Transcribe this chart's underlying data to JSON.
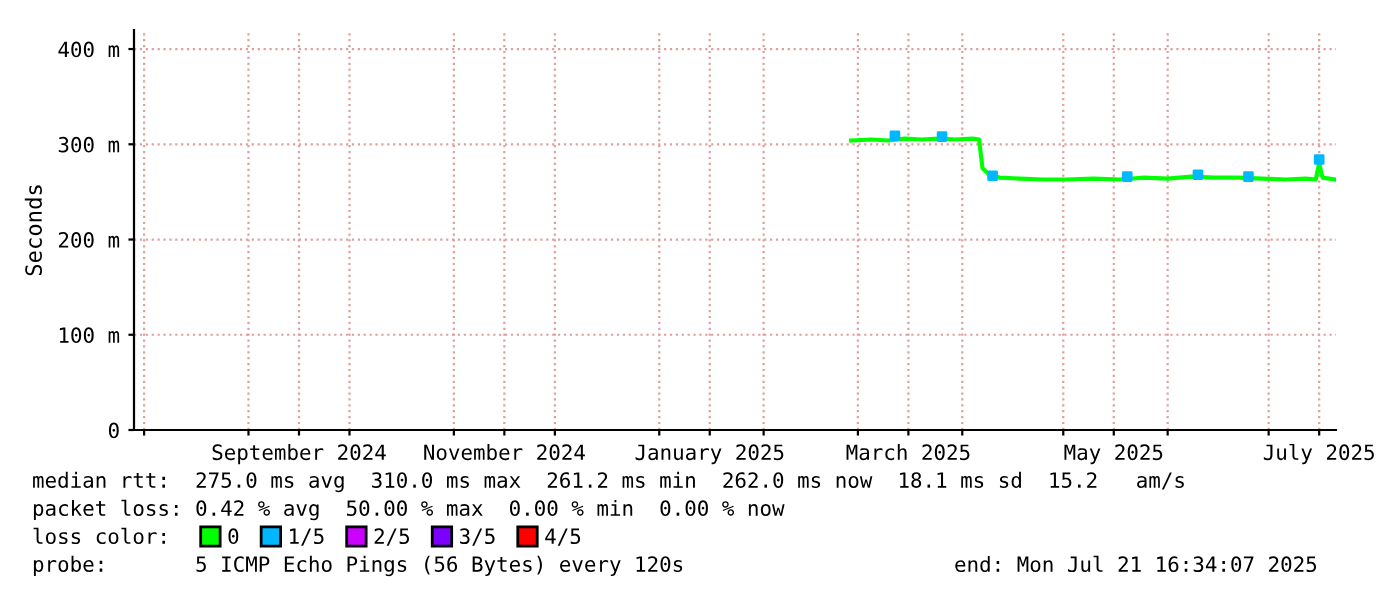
{
  "chart_data": {
    "type": "line",
    "ylabel": "Seconds",
    "xlim": [
      "2024-07-29",
      "2025-07-21"
    ],
    "xticks": [
      {
        "value": "2024-08-01",
        "label": null
      },
      {
        "value": "2024-09-01",
        "label": null
      },
      {
        "value": "2024-09-16",
        "label": "September 2024"
      },
      {
        "value": "2024-10-01",
        "label": null
      },
      {
        "value": "2024-11-01",
        "label": null
      },
      {
        "value": "2024-11-16",
        "label": "November 2024"
      },
      {
        "value": "2024-12-01",
        "label": null
      },
      {
        "value": "2025-01-01",
        "label": null
      },
      {
        "value": "2025-01-16",
        "label": "January 2025"
      },
      {
        "value": "2025-02-01",
        "label": null
      },
      {
        "value": "2025-03-01",
        "label": null
      },
      {
        "value": "2025-03-16",
        "label": "March 2025"
      },
      {
        "value": "2025-04-01",
        "label": null
      },
      {
        "value": "2025-05-01",
        "label": null
      },
      {
        "value": "2025-05-16",
        "label": "May 2025"
      },
      {
        "value": "2025-06-01",
        "label": null
      },
      {
        "value": "2025-07-01",
        "label": null
      },
      {
        "value": "2025-07-16",
        "label": "July 2025"
      }
    ],
    "ylim": [
      0,
      420
    ],
    "yticks": [
      0,
      {
        "value": 100,
        "label": "100 m"
      },
      {
        "value": 200,
        "label": "200 m"
      },
      {
        "value": 300,
        "label": "300 m"
      },
      {
        "value": 400,
        "label": "400 m"
      }
    ],
    "grid": true,
    "legend": "bottom",
    "series": [
      {
        "name": "0",
        "color": "#00ff00",
        "x": [
          "2025-02-27",
          "2025-03-05",
          "2025-03-10",
          "2025-03-15",
          "2025-03-20",
          "2025-03-25",
          "2025-03-30",
          "2025-04-04",
          "2025-04-06",
          "2025-04-07",
          "2025-04-09",
          "2025-04-12",
          "2025-04-18",
          "2025-04-25",
          "2025-05-02",
          "2025-05-10",
          "2025-05-18",
          "2025-05-25",
          "2025-06-01",
          "2025-06-08",
          "2025-06-15",
          "2025-06-22",
          "2025-06-29",
          "2025-07-06",
          "2025-07-12",
          "2025-07-15",
          "2025-07-16",
          "2025-07-17",
          "2025-07-21"
        ],
        "values": [
          304,
          305,
          304,
          306,
          305,
          306,
          305,
          306,
          305,
          275,
          268,
          265,
          264,
          263,
          263,
          264,
          263,
          265,
          264,
          266,
          265,
          265,
          264,
          263,
          264,
          263,
          280,
          265,
          263
        ]
      },
      {
        "name": "1/5",
        "color": "#00b8ff",
        "type": "scatter",
        "marker": "square",
        "x": [
          "2025-03-12",
          "2025-03-26",
          "2025-04-10",
          "2025-05-20",
          "2025-06-10",
          "2025-06-25",
          "2025-07-16"
        ],
        "values": [
          309,
          308,
          267,
          266,
          268,
          266,
          284
        ]
      },
      {
        "name": "2/5",
        "color": "#cc00ff",
        "type": "scatter"
      },
      {
        "name": "3/5",
        "color": "#7c00ff",
        "type": "scatter"
      },
      {
        "name": "4/5",
        "color": "#ff0000",
        "type": "scatter"
      }
    ],
    "annotations": [
      "median rtt:  275.0 ms avg  310.0 ms max  261.2 ms min  262.0 ms now  18.1 ms sd  15.2   am/s",
      "packet loss: 0.42 % avg  50.00 % max  0.00 % min  0.00 % now",
      "loss color:",
      "probe:       5 ICMP Echo Pings (56 Bytes) every 120s",
      "end: Mon Jul 21 16:34:07 2025"
    ]
  }
}
